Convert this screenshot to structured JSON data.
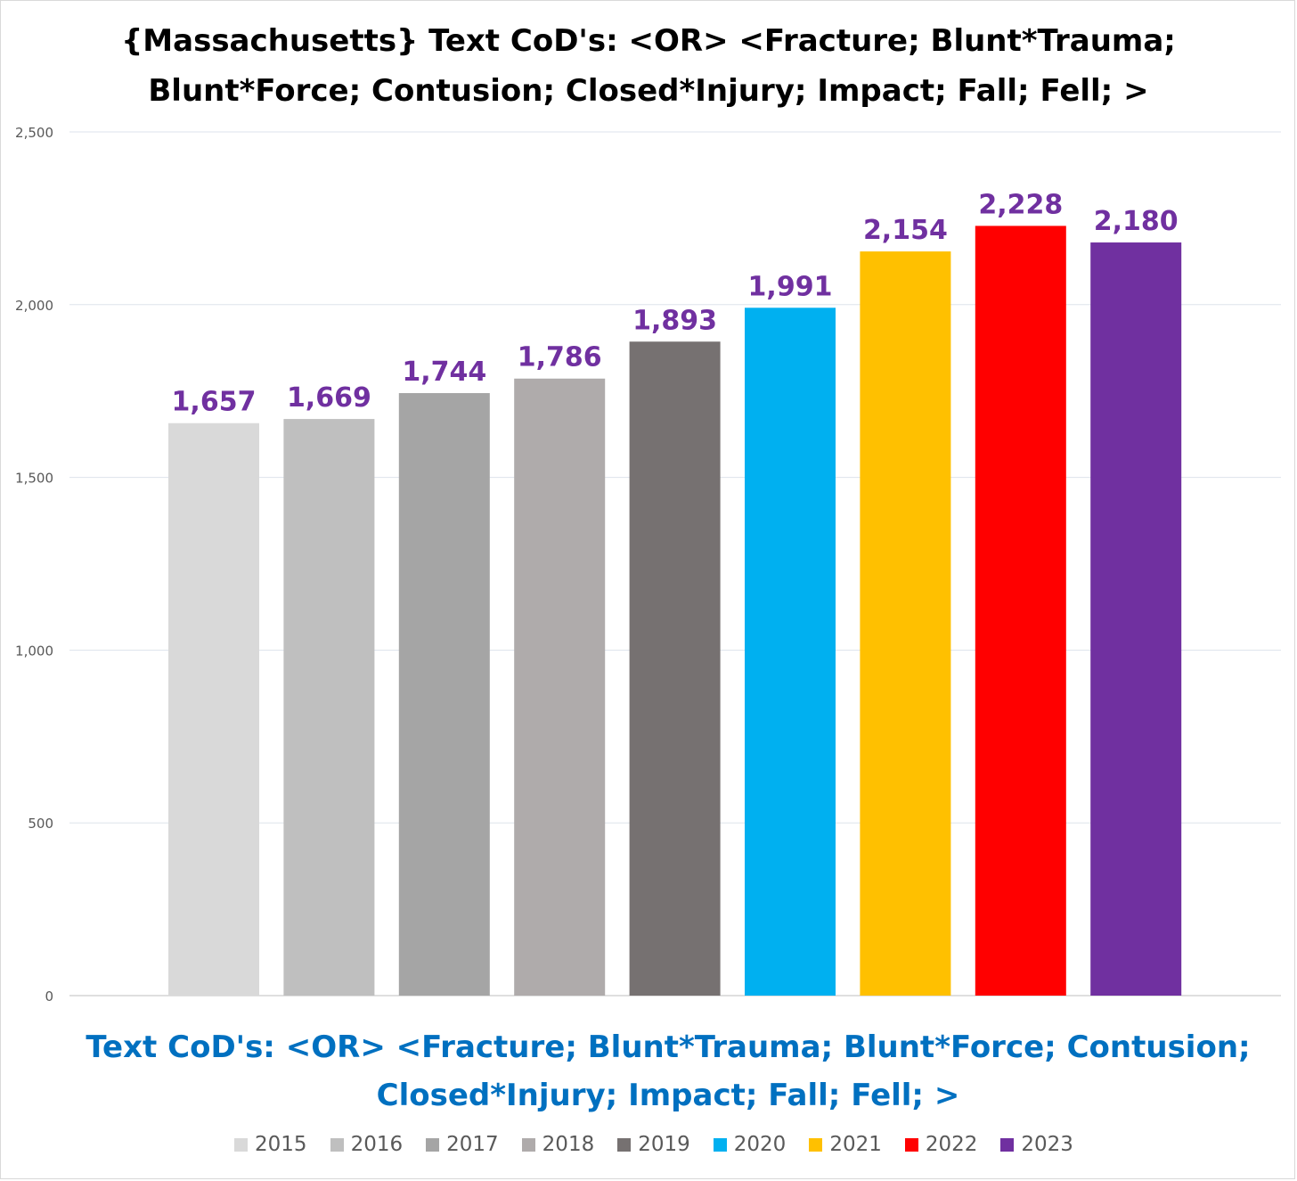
{
  "chart_data": {
    "type": "bar",
    "title_lines": [
      "{Massachusetts}  Text CoD's: <OR> <Fracture; Blunt*Trauma;",
      "Blunt*Force; Contusion; Closed*Injury; Impact; Fall; Fell; >"
    ],
    "xlabel_lines": [
      "Text CoD's: <OR> <Fracture; Blunt*Trauma; Blunt*Force; Contusion;",
      "Closed*Injury; Impact; Fall; Fell; >"
    ],
    "ylabel": "",
    "ylim": [
      0,
      2500
    ],
    "yticks": [
      0,
      500,
      1000,
      1500,
      2000,
      2500
    ],
    "ytick_labels": [
      "0",
      "500",
      "1,000",
      "1,500",
      "2,000",
      "2,500"
    ],
    "grid": true,
    "legend_position": "bottom",
    "series": [
      {
        "name": "2015",
        "value": 1657,
        "label": "1,657",
        "color": "#d9d9d9"
      },
      {
        "name": "2016",
        "value": 1669,
        "label": "1,669",
        "color": "#bfbfbf"
      },
      {
        "name": "2017",
        "value": 1744,
        "label": "1,744",
        "color": "#a5a5a5"
      },
      {
        "name": "2018",
        "value": 1786,
        "label": "1,786",
        "color": "#afabab"
      },
      {
        "name": "2019",
        "value": 1893,
        "label": "1,893",
        "color": "#767171"
      },
      {
        "name": "2020",
        "value": 1991,
        "label": "1,991",
        "color": "#00b0f0"
      },
      {
        "name": "2021",
        "value": 2154,
        "label": "2,154",
        "color": "#ffc000"
      },
      {
        "name": "2022",
        "value": 2228,
        "label": "2,228",
        "color": "#ff0000"
      },
      {
        "name": "2023",
        "value": 2180,
        "label": "2,180",
        "color": "#7030a0"
      }
    ],
    "data_label_color": "#7030a0"
  }
}
